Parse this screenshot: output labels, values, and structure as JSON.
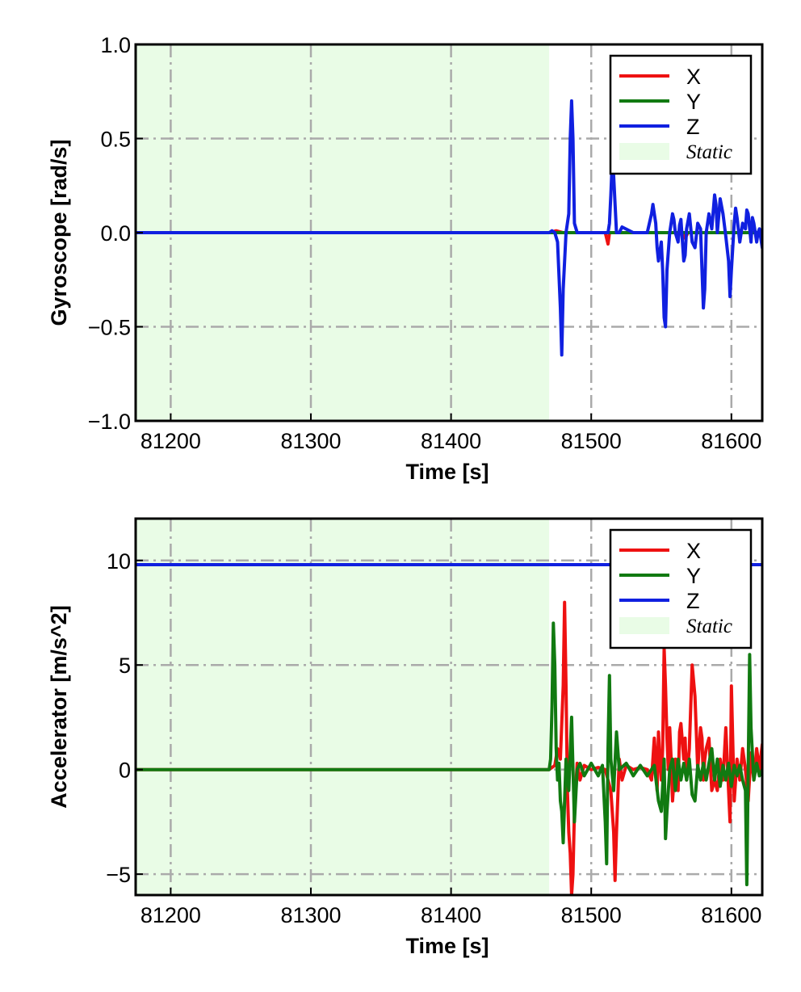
{
  "colors": {
    "x": "#ee1111",
    "y": "#117a11",
    "z": "#1020e0",
    "static_band": "#e9fce6",
    "grid": "#aaaaaa"
  },
  "chart_data": [
    {
      "type": "line",
      "xlabel": "Time [s]",
      "ylabel": "Gyroscope [rad/s]",
      "xlim": [
        81175,
        81622
      ],
      "ylim": [
        -1.0,
        1.0
      ],
      "xticks": [
        81200,
        81300,
        81400,
        81500,
        81600
      ],
      "yticks": [
        -1.0,
        -0.5,
        0.0,
        0.5,
        1.0
      ],
      "xtick_labels": [
        "81200",
        "81300",
        "81400",
        "81500",
        "81600"
      ],
      "ytick_labels": [
        "−1.0",
        "−0.5",
        "0.0",
        "0.5",
        "1.0"
      ],
      "grid": true,
      "legend_position": "top-right",
      "static_interval": [
        81175,
        81470
      ],
      "legend": [
        "X",
        "Y",
        "Z",
        "Static"
      ],
      "series": [
        {
          "name": "X",
          "color_key": "x",
          "x": [
            81175,
            81470,
            81475,
            81480,
            81490,
            81510,
            81512,
            81513,
            81514,
            81520,
            81540,
            81565,
            81567,
            81569,
            81575,
            81600,
            81622
          ],
          "y": [
            0.0,
            0.0,
            0.01,
            0.0,
            0.0,
            0.0,
            -0.06,
            0.0,
            0.0,
            0.0,
            0.0,
            0.0,
            -0.03,
            0.0,
            0.0,
            0.0,
            0.0
          ]
        },
        {
          "name": "Y",
          "color_key": "y",
          "x": [
            81175,
            81470,
            81500,
            81540,
            81580,
            81622
          ],
          "y": [
            0.0,
            0.0,
            0.0,
            0.0,
            0.0,
            0.0
          ]
        },
        {
          "name": "Z",
          "color_key": "z",
          "x": [
            81175,
            81470,
            81472,
            81474,
            81476,
            81478,
            81479,
            81480,
            81482,
            81484,
            81485,
            81486,
            81487,
            81488,
            81490,
            81512,
            81513,
            81514,
            81515,
            81516,
            81518,
            81520,
            81522,
            81530,
            81540,
            81543,
            81544,
            81546,
            81547,
            81548,
            81550,
            81551,
            81552,
            81553,
            81554,
            81556,
            81558,
            81559,
            81560,
            81562,
            81563,
            81564,
            81566,
            81567,
            81568,
            81570,
            81572,
            81574,
            81576,
            81578,
            81579,
            81580,
            81581,
            81582,
            81584,
            81586,
            81588,
            81589,
            81590,
            81592,
            81594,
            81596,
            81598,
            81599,
            81600,
            81602,
            81603,
            81604,
            81606,
            81608,
            81610,
            81611,
            81612,
            81614,
            81615,
            81616,
            81618,
            81619,
            81620,
            81622
          ],
          "y": [
            0.0,
            0.0,
            0.01,
            0.0,
            -0.05,
            -0.4,
            -0.65,
            -0.3,
            0.0,
            0.1,
            0.5,
            0.7,
            0.5,
            0.05,
            0.0,
            0.0,
            0.05,
            0.2,
            0.38,
            0.3,
            0.0,
            0.0,
            0.03,
            0.0,
            0.0,
            0.1,
            0.15,
            0.05,
            -0.08,
            -0.15,
            -0.05,
            -0.2,
            -0.45,
            -0.5,
            -0.2,
            0.0,
            0.1,
            0.07,
            0.0,
            -0.05,
            0.04,
            0.07,
            -0.15,
            -0.12,
            0.02,
            0.1,
            -0.05,
            -0.08,
            0.05,
            0.02,
            -0.2,
            -0.4,
            -0.3,
            0.0,
            0.1,
            0.02,
            0.2,
            0.15,
            0.0,
            0.18,
            0.1,
            -0.02,
            -0.15,
            -0.34,
            -0.2,
            0.05,
            0.13,
            0.08,
            -0.05,
            0.05,
            0.02,
            0.12,
            0.1,
            -0.05,
            0.08,
            0.05,
            -0.05,
            0.0,
            0.02,
            -0.08
          ]
        }
      ]
    },
    {
      "type": "line",
      "xlabel": "Time [s]",
      "ylabel": "Accelerator [m/s^2]",
      "xlim": [
        81175,
        81622
      ],
      "ylim": [
        -6.0,
        12.0
      ],
      "xticks": [
        81200,
        81300,
        81400,
        81500,
        81600
      ],
      "yticks": [
        -5,
        0,
        5,
        10
      ],
      "xtick_labels": [
        "81200",
        "81300",
        "81400",
        "81500",
        "81600"
      ],
      "ytick_labels": [
        "−5",
        "0",
        "5",
        "10"
      ],
      "grid": true,
      "legend_position": "top-right",
      "static_interval": [
        81175,
        81470
      ],
      "legend": [
        "X",
        "Y",
        "Z",
        "Static"
      ],
      "series": [
        {
          "name": "X",
          "color_key": "x",
          "x": [
            81175,
            81470,
            81474,
            81476,
            81478,
            81480,
            81481,
            81482,
            81483,
            81484,
            81485,
            81486,
            81487,
            81488,
            81490,
            81492,
            81495,
            81500,
            81505,
            81510,
            81512,
            81514,
            81516,
            81517,
            81518,
            81520,
            81522,
            81525,
            81530,
            81535,
            81540,
            81543,
            81545,
            81546,
            81547,
            81548,
            81549,
            81550,
            81551,
            81552,
            81553,
            81554,
            81555,
            81556,
            81557,
            81558,
            81560,
            81562,
            81563,
            81564,
            81566,
            81567,
            81568,
            81570,
            81572,
            81574,
            81576,
            81578,
            81579,
            81580,
            81581,
            81582,
            81584,
            81586,
            81588,
            81590,
            81592,
            81594,
            81596,
            81598,
            81599,
            81600,
            81602,
            81604,
            81606,
            81608,
            81610,
            81612,
            81614,
            81616,
            81618,
            81620,
            81622
          ],
          "y": [
            0.0,
            0.0,
            0.2,
            1.0,
            0.5,
            4.0,
            8.0,
            4.0,
            -1.0,
            -3.0,
            -4.0,
            -6.0,
            -5.0,
            -2.0,
            0.3,
            -0.5,
            0.2,
            0.0,
            0.1,
            0.0,
            -0.5,
            -1.0,
            -3.0,
            -5.3,
            -3.0,
            0.5,
            -0.5,
            0.2,
            0.0,
            0.1,
            0.0,
            -0.5,
            1.5,
            0.5,
            -1.0,
            1.8,
            0.5,
            -0.5,
            1.0,
            5.8,
            4.0,
            1.5,
            0.0,
            2.0,
            0.5,
            -1.5,
            0.5,
            -1.0,
            1.8,
            2.2,
            0.5,
            1.5,
            -0.5,
            1.0,
            5.0,
            3.5,
            0.0,
            2.0,
            1.5,
            -0.5,
            0.5,
            1.0,
            1.5,
            -1.0,
            -0.5,
            -1.0,
            0.5,
            -0.5,
            2.0,
            -1.0,
            -2.5,
            4.0,
            -1.5,
            0.5,
            -0.5,
            1.0,
            0.0,
            -1.5,
            0.8,
            -0.5,
            1.0,
            0.0,
            1.2
          ]
        },
        {
          "name": "Y",
          "color_key": "y",
          "x": [
            81175,
            81470,
            81471,
            81472,
            81473,
            81474,
            81475,
            81476,
            81477,
            81478,
            81479,
            81480,
            81482,
            81484,
            81486,
            81488,
            81490,
            81492,
            81495,
            81500,
            81505,
            81508,
            81510,
            81511,
            81512,
            81513,
            81514,
            81516,
            81518,
            81520,
            81525,
            81530,
            81535,
            81540,
            81545,
            81548,
            81550,
            81552,
            81553,
            81554,
            81556,
            81558,
            81560,
            81562,
            81564,
            81566,
            81568,
            81570,
            81572,
            81574,
            81576,
            81578,
            81580,
            81582,
            81584,
            81586,
            81588,
            81590,
            81592,
            81594,
            81596,
            81598,
            81600,
            81602,
            81604,
            81606,
            81608,
            81610,
            81611,
            81612,
            81613,
            81614,
            81616,
            81618,
            81620,
            81622
          ],
          "y": [
            0.0,
            0.0,
            0.5,
            3.0,
            7.0,
            5.0,
            1.0,
            -0.5,
            0.3,
            -1.5,
            -2.0,
            -3.5,
            0.5,
            -1.0,
            2.5,
            -2.5,
            0.0,
            0.3,
            -0.3,
            0.3,
            -0.3,
            0.2,
            -2.5,
            -4.5,
            1.0,
            4.5,
            0.5,
            -1.0,
            1.8,
            0.0,
            0.3,
            -0.3,
            0.2,
            -0.3,
            0.2,
            -1.5,
            -2.0,
            0.5,
            -3.3,
            -2.0,
            0.0,
            0.5,
            -1.0,
            0.5,
            -0.5,
            0.3,
            -0.5,
            0.5,
            -1.2,
            -1.5,
            0.2,
            -0.5,
            0.3,
            -0.5,
            0.3,
            1.0,
            -0.5,
            0.5,
            -0.8,
            0.2,
            -0.5,
            0.3,
            -0.8,
            0.2,
            -0.3,
            0.2,
            -0.5,
            -1.0,
            -5.5,
            0.0,
            5.5,
            2.0,
            -0.5,
            0.3,
            -0.3,
            0.0
          ]
        },
        {
          "name": "Z",
          "color_key": "z",
          "x": [
            81175,
            81470,
            81500,
            81550,
            81622
          ],
          "y": [
            9.8,
            9.8,
            9.8,
            9.8,
            9.8
          ]
        }
      ]
    }
  ]
}
